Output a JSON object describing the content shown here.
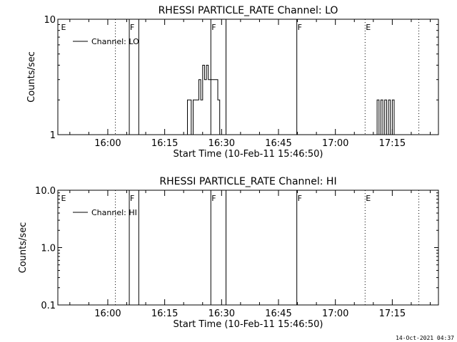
{
  "footer": {
    "timestamp": "14-Oct-2021 04:37"
  },
  "chart_data": [
    {
      "type": "line",
      "title": "RHESSI PARTICLE_RATE Channel: LO",
      "xlabel": "Start Time (10-Feb-11 15:46:50)",
      "ylabel": "Counts/sec",
      "xlim": [
        "15:46:50",
        "17:27:10"
      ],
      "ylim": [
        1,
        10
      ],
      "yscale": "log",
      "yticks": [
        "1",
        "10"
      ],
      "xticks": [
        "16:00",
        "16:15",
        "16:30",
        "16:45",
        "17:00",
        "17:15"
      ],
      "legend": {
        "label": "Channel: LO",
        "placement": "top-left"
      },
      "markers": [
        {
          "label": "E",
          "time": "15:47:30",
          "style": "none"
        },
        {
          "label": "",
          "time": "16:02:00",
          "style": "dotted"
        },
        {
          "label": "F",
          "time": "16:05:40",
          "style": "solid"
        },
        {
          "label": "",
          "time": "16:08:10",
          "style": "solid"
        },
        {
          "label": "F",
          "time": "16:27:10",
          "style": "solid"
        },
        {
          "label": "",
          "time": "16:31:10",
          "style": "solid"
        },
        {
          "label": "F",
          "time": "16:49:50",
          "style": "solid"
        },
        {
          "label": "E",
          "time": "17:07:50",
          "style": "dotted"
        },
        {
          "label": "",
          "time": "17:22:00",
          "style": "dotted"
        }
      ],
      "series": [
        {
          "values": [
            [
              "16:21:00",
              1
            ],
            [
              "16:21:00",
              2
            ],
            [
              "16:22:00",
              2
            ],
            [
              "16:22:00",
              1
            ],
            [
              "16:22:30",
              1
            ],
            [
              "16:22:30",
              2
            ],
            [
              "16:24:00",
              2
            ],
            [
              "16:24:00",
              3
            ],
            [
              "16:24:30",
              3
            ],
            [
              "16:24:30",
              2
            ],
            [
              "16:25:00",
              2
            ],
            [
              "16:25:00",
              4
            ],
            [
              "16:25:30",
              4
            ],
            [
              "16:25:30",
              3
            ],
            [
              "16:26:00",
              3
            ],
            [
              "16:26:00",
              4
            ],
            [
              "16:26:30",
              4
            ],
            [
              "16:26:30",
              3
            ],
            [
              "16:29:00",
              3
            ],
            [
              "16:29:00",
              2
            ],
            [
              "16:29:30",
              2
            ],
            [
              "16:29:30",
              1
            ],
            [
              "16:30:00",
              1
            ]
          ]
        },
        {
          "values": [
            [
              "17:11:00",
              1
            ],
            [
              "17:11:00",
              2
            ],
            [
              "17:11:30",
              2
            ],
            [
              "17:11:30",
              1
            ],
            [
              "17:12:00",
              1
            ],
            [
              "17:12:00",
              2
            ],
            [
              "17:12:30",
              2
            ],
            [
              "17:12:30",
              1
            ],
            [
              "17:13:00",
              1
            ],
            [
              "17:13:00",
              2
            ],
            [
              "17:13:30",
              2
            ],
            [
              "17:13:30",
              1
            ],
            [
              "17:14:00",
              1
            ],
            [
              "17:14:00",
              2
            ],
            [
              "17:14:30",
              2
            ],
            [
              "17:14:30",
              1
            ],
            [
              "17:15:00",
              1
            ],
            [
              "17:15:00",
              2
            ],
            [
              "17:15:30",
              2
            ],
            [
              "17:15:30",
              1
            ],
            [
              "17:16:00",
              1
            ]
          ]
        }
      ]
    },
    {
      "type": "line",
      "title": "RHESSI PARTICLE_RATE Channel: HI",
      "xlabel": "Start Time (10-Feb-11 15:46:50)",
      "ylabel": "Counts/sec",
      "xlim": [
        "15:46:50",
        "17:27:10"
      ],
      "ylim": [
        0.1,
        10
      ],
      "yscale": "log",
      "yticks": [
        "0.1",
        "1.0",
        "10.0"
      ],
      "xticks": [
        "16:00",
        "16:15",
        "16:30",
        "16:45",
        "17:00",
        "17:15"
      ],
      "legend": {
        "label": "Channel: HI",
        "placement": "top-left"
      },
      "markers": [
        {
          "label": "E",
          "time": "15:47:30",
          "style": "none"
        },
        {
          "label": "",
          "time": "16:02:00",
          "style": "dotted"
        },
        {
          "label": "F",
          "time": "16:05:40",
          "style": "solid"
        },
        {
          "label": "",
          "time": "16:08:10",
          "style": "solid"
        },
        {
          "label": "F",
          "time": "16:27:10",
          "style": "solid"
        },
        {
          "label": "",
          "time": "16:31:10",
          "style": "solid"
        },
        {
          "label": "F",
          "time": "16:49:50",
          "style": "solid"
        },
        {
          "label": "E",
          "time": "17:07:50",
          "style": "dotted"
        },
        {
          "label": "",
          "time": "17:22:00",
          "style": "dotted"
        }
      ],
      "series": []
    }
  ]
}
